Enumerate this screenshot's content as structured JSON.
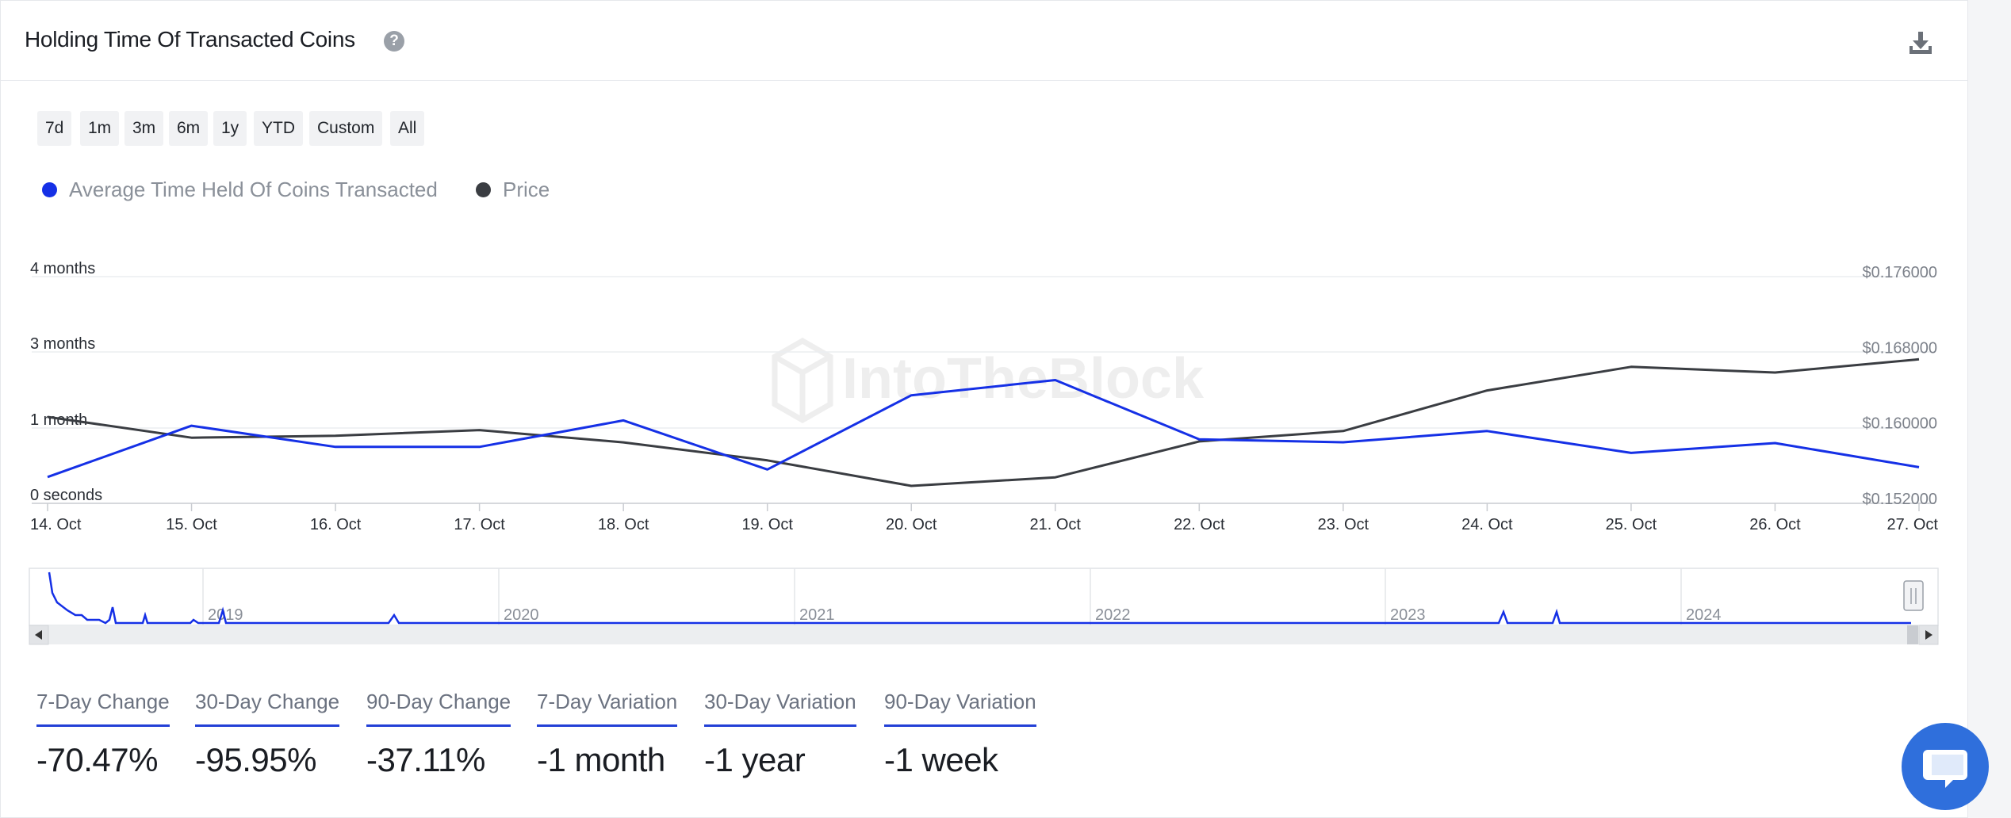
{
  "header": {
    "title": "Holding Time Of Transacted Coins",
    "help_icon": "question-circle-icon",
    "download_icon": "download-icon"
  },
  "range_buttons": [
    "7d",
    "1m",
    "3m",
    "6m",
    "1y",
    "YTD",
    "Custom",
    "All"
  ],
  "legend": [
    {
      "label": "Average Time Held Of Coins Transacted",
      "color": "#1530e6"
    },
    {
      "label": "Price",
      "color": "#3a3d42"
    }
  ],
  "watermark": "IntoTheBlock",
  "chart_data": {
    "type": "line",
    "categories": [
      "14. Oct",
      "15. Oct",
      "16. Oct",
      "17. Oct",
      "18. Oct",
      "19. Oct",
      "20. Oct",
      "21. Oct",
      "22. Oct",
      "23. Oct",
      "24. Oct",
      "25. Oct",
      "26. Oct",
      "27. Oct"
    ],
    "y_left": {
      "ticks": [
        "0 seconds",
        "1 month",
        "3 months",
        "4 months"
      ],
      "tick_positions": [
        0,
        1,
        2,
        3
      ]
    },
    "y_right": {
      "ticks": [
        "$0.152000",
        "$0.160000",
        "$0.168000",
        "$0.176000"
      ],
      "range": [
        0.152,
        0.176
      ]
    },
    "series": [
      {
        "name": "Average Time Held Of Coins Transacted",
        "color": "#1530e6",
        "axis": "left",
        "values": [
          0.35,
          1.03,
          0.75,
          0.75,
          1.1,
          0.45,
          1.43,
          1.63,
          0.85,
          0.81,
          0.96,
          0.67,
          0.8,
          0.48
        ]
      },
      {
        "name": "Price",
        "color": "#3a3d42",
        "axis": "right",
        "values": [
          0.16115,
          0.15895,
          0.15915,
          0.15975,
          0.15845,
          0.15655,
          0.15385,
          0.15475,
          0.15855,
          0.15965,
          0.16395,
          0.16645,
          0.16585,
          0.16725
        ]
      }
    ],
    "navigator": {
      "years": [
        "2019",
        "2020",
        "2021",
        "2022",
        "2023",
        "2024"
      ]
    },
    "grid": true,
    "legend_position": "top-left"
  },
  "stats": [
    {
      "label": "7-Day Change",
      "value": "-70.47%"
    },
    {
      "label": "30-Day Change",
      "value": "-95.95%"
    },
    {
      "label": "90-Day Change",
      "value": "-37.11%"
    },
    {
      "label": "7-Day Variation",
      "value": "-1 month"
    },
    {
      "label": "30-Day Variation",
      "value": "-1 year"
    },
    {
      "label": "90-Day Variation",
      "value": "-1 week"
    }
  ],
  "chat_icon": "chat-bubble-icon"
}
